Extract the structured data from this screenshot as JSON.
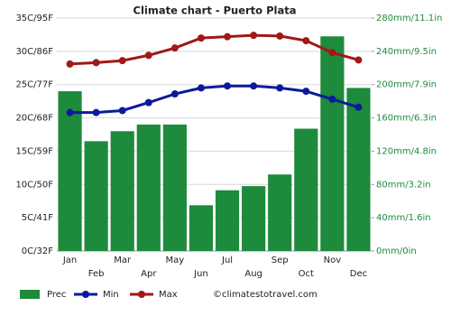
{
  "chart_data": {
    "type": "bar-line",
    "title": "Climate chart - Puerto Plata",
    "categories": [
      "Jan",
      "Feb",
      "Mar",
      "Apr",
      "May",
      "Jun",
      "Jul",
      "Aug",
      "Sep",
      "Oct",
      "Nov",
      "Dec"
    ],
    "series": [
      {
        "name": "Prec",
        "type": "bar",
        "axis": "y2",
        "color": "#1e8a3c",
        "values": [
          192,
          132,
          144,
          152,
          152,
          55,
          73,
          78,
          92,
          147,
          258,
          196
        ]
      },
      {
        "name": "Min",
        "type": "line",
        "axis": "y",
        "color": "#0a1a9c",
        "values": [
          20.8,
          20.8,
          21.1,
          22.3,
          23.6,
          24.5,
          24.8,
          24.8,
          24.5,
          24.0,
          22.8,
          21.6
        ]
      },
      {
        "name": "Max",
        "type": "line",
        "axis": "y",
        "color": "#a01818",
        "values": [
          28.1,
          28.3,
          28.6,
          29.4,
          30.5,
          32.0,
          32.2,
          32.4,
          32.3,
          31.6,
          29.8,
          28.7
        ]
      }
    ],
    "ylim": [
      0,
      35
    ],
    "yticks": [
      {
        "value": 0,
        "label": "0C/32F"
      },
      {
        "value": 5,
        "label": "5C/41F"
      },
      {
        "value": 10,
        "label": "10C/50F"
      },
      {
        "value": 15,
        "label": "15C/59F"
      },
      {
        "value": 20,
        "label": "20C/68F"
      },
      {
        "value": 25,
        "label": "25C/77F"
      },
      {
        "value": 30,
        "label": "30C/86F"
      },
      {
        "value": 35,
        "label": "35C/95F"
      }
    ],
    "y2lim": [
      0,
      280
    ],
    "y2ticks": [
      {
        "value": 0,
        "label": "0mm/0in"
      },
      {
        "value": 40,
        "label": "40mm/1.6in"
      },
      {
        "value": 80,
        "label": "80mm/3.2in"
      },
      {
        "value": 120,
        "label": "120mm/4.8in"
      },
      {
        "value": 160,
        "label": "160mm/6.3in"
      },
      {
        "value": 200,
        "label": "200mm/7.9in"
      },
      {
        "value": 240,
        "label": "240mm/9.5in"
      },
      {
        "value": 280,
        "label": "280mm/11.1in"
      }
    ],
    "grid": true,
    "legend": "bottom",
    "credit": "©climatestotravel.com"
  }
}
